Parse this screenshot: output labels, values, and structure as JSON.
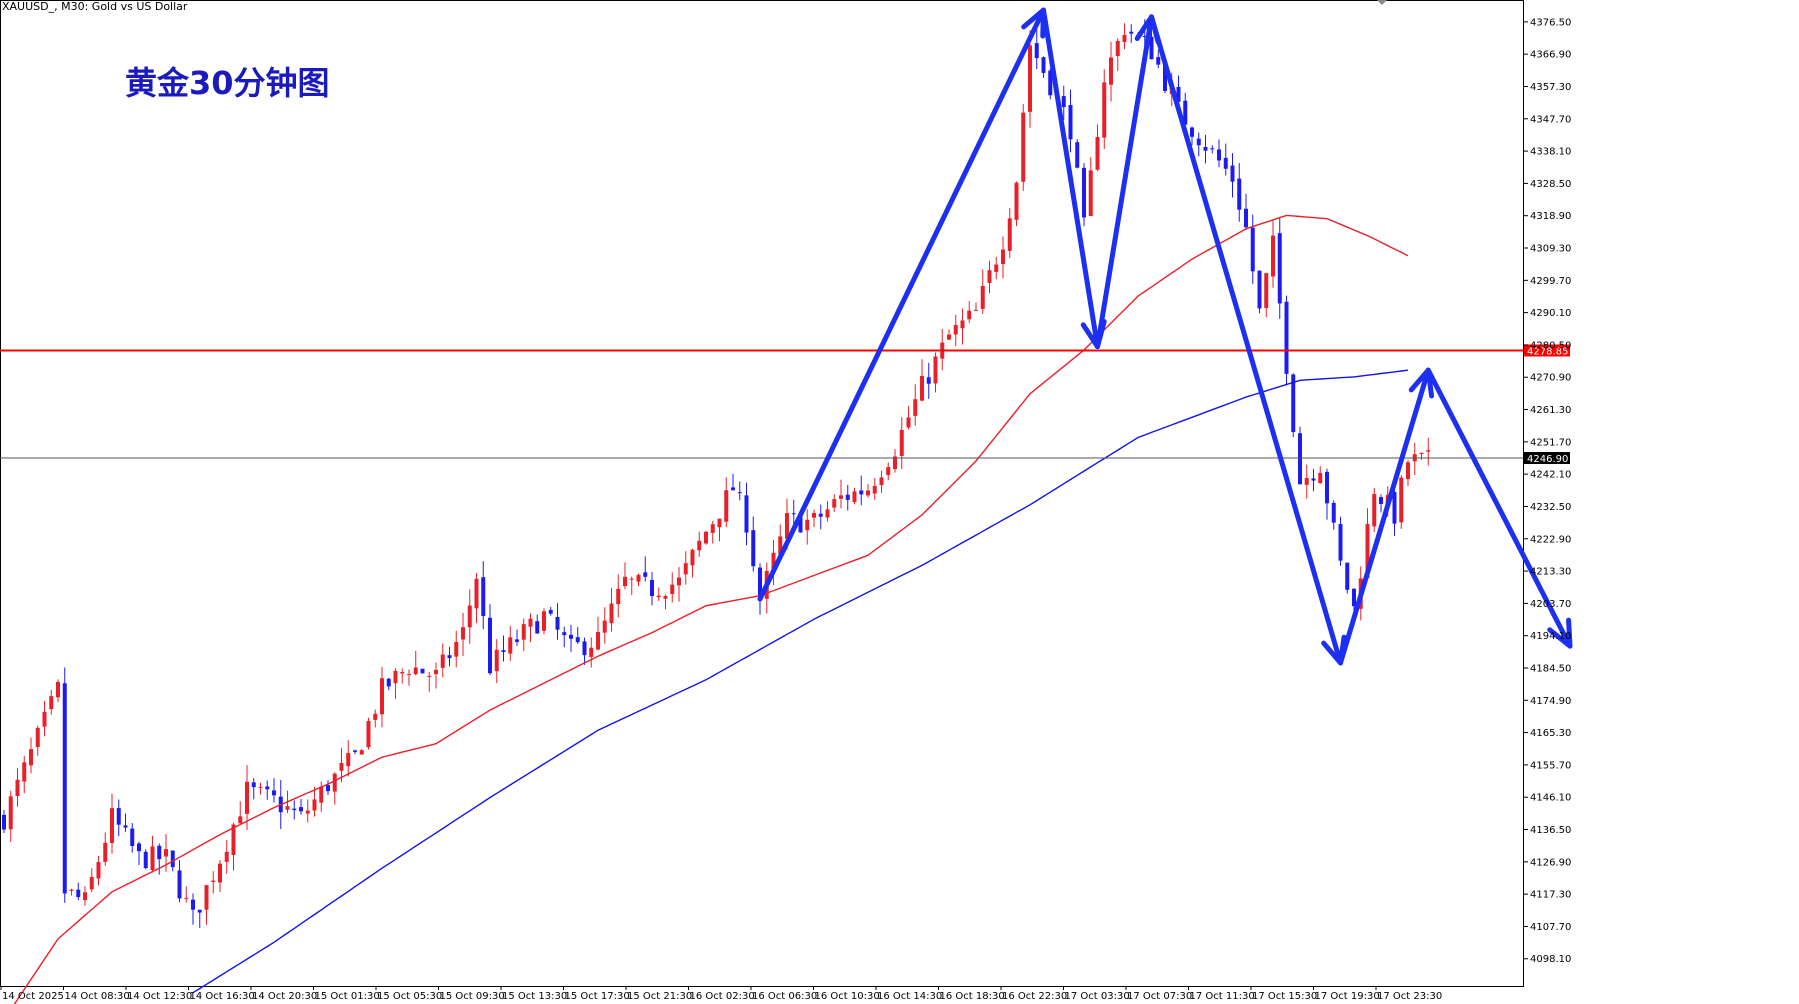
{
  "header": {
    "symbol_label": "XAUUSD_, M30:  Gold vs US Dollar"
  },
  "title": "黄金30分钟图",
  "colors": {
    "bull": "#e8202a",
    "bear": "#1c1cf0",
    "ma_fast": "#e8202a",
    "ma_slow": "#1414e6",
    "resistance": "#ff0000",
    "current": "#555555",
    "arrows": "#1d2ff0"
  },
  "chart_data": {
    "type": "candlestick",
    "symbol": "XAUUSD_",
    "timeframe": "M30",
    "ylim": [
      4090,
      4383
    ],
    "y_ticks": [
      "4376.50",
      "4366.90",
      "4357.30",
      "4347.70",
      "4338.10",
      "4328.50",
      "4318.90",
      "4309.30",
      "4299.70",
      "4290.10",
      "4280.50",
      "4270.90",
      "4261.30",
      "4251.70",
      "4242.10",
      "4232.50",
      "4222.90",
      "4213.30",
      "4203.70",
      "4194.10",
      "4184.50",
      "4174.90",
      "4165.30",
      "4155.70",
      "4146.10",
      "4136.50",
      "4126.90",
      "4117.30",
      "4107.70",
      "4098.10"
    ],
    "x_ticks": [
      "14 Oct 2025",
      "14 Oct 08:30",
      "14 Oct 12:30",
      "14 Oct 16:30",
      "14 Oct 20:30",
      "15 Oct 01:30",
      "15 Oct 05:30",
      "15 Oct 09:30",
      "15 Oct 13:30",
      "15 Oct 17:30",
      "15 Oct 21:30",
      "16 Oct 02:30",
      "16 Oct 06:30",
      "16 Oct 10:30",
      "16 Oct 14:30",
      "16 Oct 18:30",
      "16 Oct 22:30",
      "17 Oct 03:30",
      "17 Oct 07:30",
      "17 Oct 11:30",
      "17 Oct 15:30",
      "17 Oct 19:30",
      "17 Oct 23:30"
    ],
    "horizontal_lines": [
      {
        "name": "resistance",
        "value": 4278.85,
        "label": "4278.85"
      },
      {
        "name": "current",
        "value": 4246.9,
        "label": "4246.90"
      }
    ],
    "close_waypoints": [
      [
        0,
        4140
      ],
      [
        8,
        4178
      ],
      [
        9,
        4118
      ],
      [
        12,
        4115
      ],
      [
        16,
        4140
      ],
      [
        20,
        4128
      ],
      [
        24,
        4128
      ],
      [
        28,
        4110
      ],
      [
        32,
        4128
      ],
      [
        36,
        4148
      ],
      [
        40,
        4145
      ],
      [
        44,
        4140
      ],
      [
        48,
        4150
      ],
      [
        52,
        4158
      ],
      [
        56,
        4178
      ],
      [
        60,
        4185
      ],
      [
        64,
        4182
      ],
      [
        68,
        4195
      ],
      [
        70,
        4212
      ],
      [
        72,
        4185
      ],
      [
        76,
        4193
      ],
      [
        80,
        4200
      ],
      [
        84,
        4190
      ],
      [
        88,
        4193
      ],
      [
        92,
        4210
      ],
      [
        96,
        4208
      ],
      [
        100,
        4210
      ],
      [
        104,
        4225
      ],
      [
        108,
        4238
      ],
      [
        110,
        4228
      ],
      [
        112,
        4205
      ],
      [
        116,
        4228
      ],
      [
        120,
        4228
      ],
      [
        124,
        4235
      ],
      [
        128,
        4238
      ],
      [
        132,
        4250
      ],
      [
        136,
        4268
      ],
      [
        140,
        4283
      ],
      [
        144,
        4290
      ],
      [
        148,
        4312
      ],
      [
        150,
        4330
      ],
      [
        152,
        4370
      ],
      [
        155,
        4358
      ],
      [
        158,
        4345
      ],
      [
        160,
        4315
      ],
      [
        163,
        4360
      ],
      [
        166,
        4375
      ],
      [
        170,
        4368
      ],
      [
        174,
        4350
      ],
      [
        178,
        4340
      ],
      [
        182,
        4330
      ],
      [
        184,
        4315
      ],
      [
        186,
        4290
      ],
      [
        188,
        4310
      ],
      [
        190,
        4275
      ],
      [
        192,
        4240
      ],
      [
        195,
        4245
      ],
      [
        198,
        4215
      ],
      [
        200,
        4202
      ],
      [
        203,
        4238
      ],
      [
        206,
        4230
      ],
      [
        208,
        4246
      ]
    ],
    "ma_fast": [
      [
        0,
        4080
      ],
      [
        8,
        4104
      ],
      [
        16,
        4118
      ],
      [
        24,
        4126
      ],
      [
        32,
        4135
      ],
      [
        40,
        4143
      ],
      [
        48,
        4150
      ],
      [
        56,
        4158
      ],
      [
        64,
        4162
      ],
      [
        72,
        4172
      ],
      [
        80,
        4180
      ],
      [
        88,
        4188
      ],
      [
        96,
        4195
      ],
      [
        104,
        4203
      ],
      [
        112,
        4206
      ],
      [
        120,
        4212
      ],
      [
        128,
        4218
      ],
      [
        136,
        4230
      ],
      [
        144,
        4246
      ],
      [
        152,
        4266
      ],
      [
        160,
        4279
      ],
      [
        168,
        4295
      ],
      [
        176,
        4306
      ],
      [
        184,
        4315
      ],
      [
        190,
        4319
      ],
      [
        196,
        4318
      ],
      [
        202,
        4313
      ],
      [
        208,
        4307
      ]
    ],
    "ma_slow": [
      [
        28,
        4088
      ],
      [
        40,
        4103
      ],
      [
        56,
        4125
      ],
      [
        72,
        4146
      ],
      [
        88,
        4166
      ],
      [
        104,
        4181
      ],
      [
        120,
        4199
      ],
      [
        136,
        4215
      ],
      [
        152,
        4233
      ],
      [
        168,
        4253
      ],
      [
        184,
        4265
      ],
      [
        192,
        4270
      ],
      [
        200,
        4271
      ],
      [
        208,
        4273
      ]
    ],
    "annotation_arrows": [
      [
        [
          112,
          4205
        ],
        [
          154,
          4380
        ]
      ],
      [
        [
          154,
          4380
        ],
        [
          162,
          4280
        ]
      ],
      [
        [
          162,
          4280
        ],
        [
          170,
          4378
        ]
      ],
      [
        [
          170,
          4378
        ],
        [
          198,
          4186
        ]
      ],
      [
        [
          198,
          4186
        ],
        [
          211,
          4273
        ]
      ],
      [
        [
          211,
          4273
        ],
        [
          232,
          4191
        ]
      ]
    ]
  }
}
